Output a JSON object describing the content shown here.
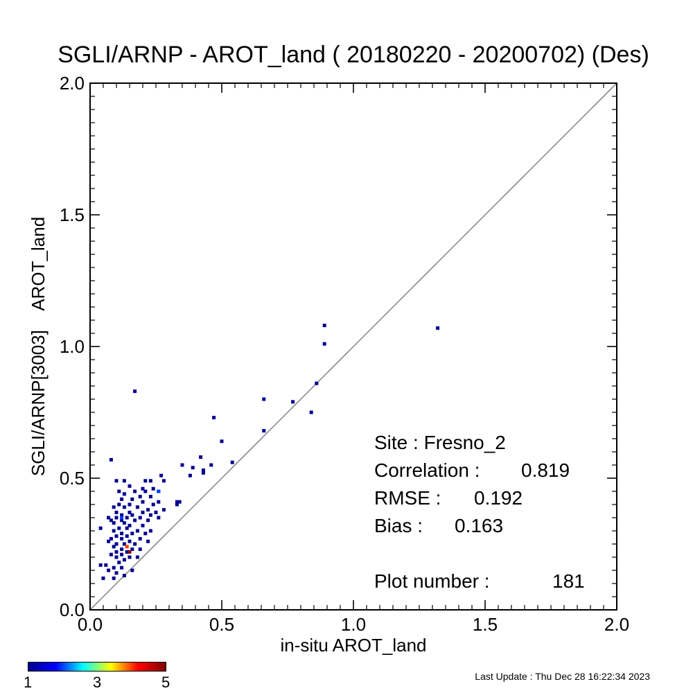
{
  "chart_data": {
    "type": "scatter",
    "subtype": "density-scatter",
    "title": "SGLI/ARNP - AROT_land ( 20180220 - 20200702) (Des)",
    "xlabel": "in-situ AROT_land",
    "ylabel": "SGLI/ARNP[3003]    AROT_land",
    "xlim": [
      0.0,
      2.0
    ],
    "ylim": [
      0.0,
      2.0
    ],
    "xticks": [
      "0.0",
      "0.5",
      "1.0",
      "1.5",
      "2.0"
    ],
    "yticks": [
      "0.0",
      "0.5",
      "1.0",
      "1.5",
      "2.0"
    ],
    "reference_line": "y = x",
    "grid": false,
    "colorbar": {
      "min": 1,
      "max": 5,
      "labels": [
        "1",
        "3",
        "5"
      ],
      "colors": [
        "#00008f",
        "#0000ff",
        "#00ffff",
        "#ffff00",
        "#ff0000",
        "#800000"
      ]
    },
    "points": [
      [
        0.17,
        0.83
      ],
      [
        0.89,
        1.08
      ],
      [
        0.89,
        1.01
      ],
      [
        1.32,
        1.07
      ],
      [
        0.86,
        0.86
      ],
      [
        0.66,
        0.8
      ],
      [
        0.77,
        0.79
      ],
      [
        0.84,
        0.75
      ],
      [
        0.47,
        0.73
      ],
      [
        0.66,
        0.68
      ],
      [
        0.5,
        0.64
      ],
      [
        0.42,
        0.58
      ],
      [
        0.54,
        0.56
      ],
      [
        0.46,
        0.55
      ],
      [
        0.35,
        0.55
      ],
      [
        0.39,
        0.54
      ],
      [
        0.43,
        0.53
      ],
      [
        0.43,
        0.52
      ],
      [
        0.38,
        0.51
      ],
      [
        0.27,
        0.51
      ],
      [
        0.08,
        0.57
      ],
      [
        0.1,
        0.49
      ],
      [
        0.13,
        0.49
      ],
      [
        0.21,
        0.49
      ],
      [
        0.23,
        0.49
      ],
      [
        0.28,
        0.49
      ],
      [
        0.15,
        0.47
      ],
      [
        0.2,
        0.46
      ],
      [
        0.24,
        0.46
      ],
      [
        0.11,
        0.45
      ],
      [
        0.17,
        0.45
      ],
      [
        0.21,
        0.45
      ],
      [
        0.26,
        0.45
      ],
      [
        0.13,
        0.44
      ],
      [
        0.19,
        0.43
      ],
      [
        0.23,
        0.43
      ],
      [
        0.12,
        0.42
      ],
      [
        0.16,
        0.42
      ],
      [
        0.2,
        0.41
      ],
      [
        0.26,
        0.41
      ],
      [
        0.33,
        0.41
      ],
      [
        0.34,
        0.41
      ],
      [
        0.11,
        0.4
      ],
      [
        0.15,
        0.4
      ],
      [
        0.24,
        0.4
      ],
      [
        0.33,
        0.4
      ],
      [
        0.09,
        0.39
      ],
      [
        0.13,
        0.39
      ],
      [
        0.18,
        0.39
      ],
      [
        0.22,
        0.38
      ],
      [
        0.28,
        0.38
      ],
      [
        0.1,
        0.37
      ],
      [
        0.15,
        0.37
      ],
      [
        0.2,
        0.37
      ],
      [
        0.25,
        0.37
      ],
      [
        0.12,
        0.36
      ],
      [
        0.16,
        0.36
      ],
      [
        0.23,
        0.36
      ],
      [
        0.07,
        0.35
      ],
      [
        0.1,
        0.35
      ],
      [
        0.14,
        0.35
      ],
      [
        0.19,
        0.35
      ],
      [
        0.26,
        0.35
      ],
      [
        0.08,
        0.34
      ],
      [
        0.12,
        0.34
      ],
      [
        0.17,
        0.34
      ],
      [
        0.22,
        0.34
      ],
      [
        0.09,
        0.33
      ],
      [
        0.13,
        0.33
      ],
      [
        0.15,
        0.32
      ],
      [
        0.2,
        0.32
      ],
      [
        0.11,
        0.31
      ],
      [
        0.14,
        0.31
      ],
      [
        0.18,
        0.3
      ],
      [
        0.23,
        0.3
      ],
      [
        0.04,
        0.31
      ],
      [
        0.09,
        0.3
      ],
      [
        0.12,
        0.29
      ],
      [
        0.16,
        0.29
      ],
      [
        0.21,
        0.29
      ],
      [
        0.1,
        0.28
      ],
      [
        0.14,
        0.28
      ],
      [
        0.19,
        0.27
      ],
      [
        0.08,
        0.27
      ],
      [
        0.12,
        0.27
      ],
      [
        0.15,
        0.26
      ],
      [
        0.22,
        0.26
      ],
      [
        0.07,
        0.26
      ],
      [
        0.1,
        0.25
      ],
      [
        0.13,
        0.25
      ],
      [
        0.17,
        0.25
      ],
      [
        0.09,
        0.24
      ],
      [
        0.12,
        0.23
      ],
      [
        0.16,
        0.23
      ],
      [
        0.19,
        0.23
      ],
      [
        0.1,
        0.22
      ],
      [
        0.14,
        0.22
      ],
      [
        0.08,
        0.21
      ],
      [
        0.12,
        0.21
      ],
      [
        0.15,
        0.2
      ],
      [
        0.1,
        0.2
      ],
      [
        0.13,
        0.19
      ],
      [
        0.11,
        0.18
      ],
      [
        0.04,
        0.17
      ],
      [
        0.06,
        0.17
      ],
      [
        0.09,
        0.16
      ],
      [
        0.12,
        0.16
      ],
      [
        0.16,
        0.15
      ],
      [
        0.07,
        0.15
      ],
      [
        0.1,
        0.14
      ],
      [
        0.05,
        0.12
      ],
      [
        0.09,
        0.12
      ],
      [
        0.13,
        0.13
      ],
      [
        0.18,
        0.2
      ]
    ],
    "highlight_points": [
      {
        "x": 0.12,
        "y": 0.35,
        "count": 2
      },
      {
        "x": 0.26,
        "y": 0.45,
        "count": 2
      },
      {
        "x": 0.14,
        "y": 0.24,
        "count": 4
      },
      {
        "x": 0.15,
        "y": 0.22,
        "count": 5
      }
    ]
  },
  "stats": {
    "site": "Site : Fresno_2",
    "correlation_label": "Correlation :",
    "correlation_value": "0.819",
    "rmse_label": "RMSE :",
    "rmse_value": "0.192",
    "bias_label": "Bias :",
    "bias_value": "0.163",
    "plot_number_label": "Plot number :",
    "plot_number_value": "181"
  },
  "footer": "Last Update : Thu Dec 28 16:22:34 2023"
}
